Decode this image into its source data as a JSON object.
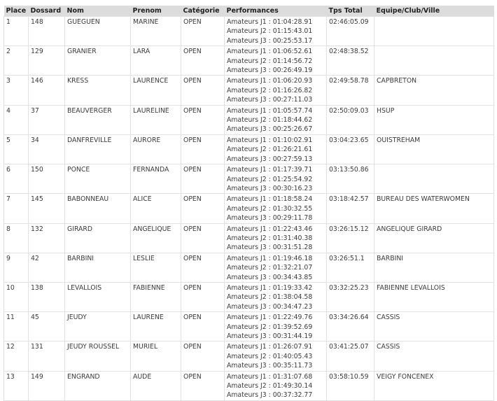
{
  "columns": [
    "Place",
    "Dossard",
    "Nom",
    "Prenom",
    "Catégorie",
    "Performances",
    "Tps Total",
    "Equipe/Club/Ville"
  ],
  "rows": [
    {
      "place": "1",
      "dossard": "148",
      "nom": "GUEGUEN",
      "prenom": "MARINE",
      "categorie": "OPEN",
      "perfs": [
        "Amateurs J1 : 01:04:28.91",
        "Amateurs J2 : 01:15:43.01",
        "Amateurs J3 : 00:25:53.17"
      ],
      "total": "02:46:05.09",
      "equipe": ""
    },
    {
      "place": "2",
      "dossard": "129",
      "nom": "GRANIER",
      "prenom": "LARA",
      "categorie": "OPEN",
      "perfs": [
        "Amateurs J1 : 01:06:52.61",
        "Amateurs J2 : 01:14:56.72",
        "Amateurs J3 : 00:26:49.19"
      ],
      "total": "02:48:38.52",
      "equipe": ""
    },
    {
      "place": "3",
      "dossard": "146",
      "nom": "KRESS",
      "prenom": "LAURENCE",
      "categorie": "OPEN",
      "perfs": [
        "Amateurs J1 : 01:06:20.93",
        "Amateurs J2 : 01:16:26.82",
        "Amateurs J3 : 00:27:11.03"
      ],
      "total": "02:49:58.78",
      "equipe": "CAPBRETON"
    },
    {
      "place": "4",
      "dossard": "37",
      "nom": "BEAUVERGER",
      "prenom": "LAURELINE",
      "categorie": "OPEN",
      "perfs": [
        "Amateurs J1 : 01:05:57.74",
        "Amateurs J2 : 01:18:44.62",
        "Amateurs J3 : 00:25:26.67"
      ],
      "total": "02:50:09.03",
      "equipe": "HSUP"
    },
    {
      "place": "5",
      "dossard": "34",
      "nom": "DANFREVILLE",
      "prenom": "AURORE",
      "categorie": "OPEN",
      "perfs": [
        "Amateurs J1 : 01:10:02.91",
        "Amateurs J2 : 01:26:21.61",
        "Amateurs J3 : 00:27:59.13"
      ],
      "total": "03:04:23.65",
      "equipe": "OUISTREHAM"
    },
    {
      "place": "6",
      "dossard": "150",
      "nom": "PONCE",
      "prenom": "FERNANDA",
      "categorie": "OPEN",
      "perfs": [
        "Amateurs J1 : 01:17:39.71",
        "Amateurs J2 : 01:25:54.92",
        "Amateurs J3 : 00:30:16.23"
      ],
      "total": "03:13:50.86",
      "equipe": ""
    },
    {
      "place": "7",
      "dossard": "145",
      "nom": "BABONNEAU",
      "prenom": "ALICE",
      "categorie": "OPEN",
      "perfs": [
        "Amateurs J1 : 01:18:58.24",
        "Amateurs J2 : 01:30:32.55",
        "Amateurs J3 : 00:29:11.78"
      ],
      "total": "03:18:42.57",
      "equipe": "BUREAU DES WATERWOMEN"
    },
    {
      "place": "8",
      "dossard": "132",
      "nom": "GIRARD",
      "prenom": "ANGELIQUE",
      "categorie": "OPEN",
      "perfs": [
        "Amateurs J1 : 01:22:43.46",
        "Amateurs J2 : 01:31:40.38",
        "Amateurs J3 : 00:31:51.28"
      ],
      "total": "03:26:15.12",
      "equipe": "ANGELIQUE GIRARD"
    },
    {
      "place": "9",
      "dossard": "42",
      "nom": "BARBINI",
      "prenom": "LESLIE",
      "categorie": "OPEN",
      "perfs": [
        "Amateurs J1 : 01:19:46.18",
        "Amateurs J2 : 01:32:21.07",
        "Amateurs J3 : 00:34:43.85"
      ],
      "total": "03:26:51.1",
      "equipe": "BARBINI"
    },
    {
      "place": "10",
      "dossard": "138",
      "nom": "LEVALLOIS",
      "prenom": "FABIENNE",
      "categorie": "OPEN",
      "perfs": [
        "Amateurs J1 : 01:19:33.42",
        "Amateurs J2 : 01:38:04.58",
        "Amateurs J3 : 00:34:47.23"
      ],
      "total": "03:32:25.23",
      "equipe": "FABIENNE LEVALLOIS"
    },
    {
      "place": "11",
      "dossard": "45",
      "nom": "JEUDY",
      "prenom": "LAURENE",
      "categorie": "OPEN",
      "perfs": [
        "Amateurs J1 : 01:22:49.76",
        "Amateurs J2 : 01:39:52.69",
        "Amateurs J3 : 00:31:44.19"
      ],
      "total": "03:34:26.64",
      "equipe": "CASSIS"
    },
    {
      "place": "12",
      "dossard": "131",
      "nom": "JEUDY ROUSSEL",
      "prenom": "MURIEL",
      "categorie": "OPEN",
      "perfs": [
        "Amateurs J1 : 01:26:07.91",
        "Amateurs J2 : 01:40:05.43",
        "Amateurs J3 : 00:35:11.73"
      ],
      "total": "03:41:25.07",
      "equipe": "CASSIS"
    },
    {
      "place": "13",
      "dossard": "149",
      "nom": "ENGRAND",
      "prenom": "AUDE",
      "categorie": "OPEN",
      "perfs": [
        "Amateurs J1 : 01:31:07.68",
        "Amateurs J2 : 01:49:30.14",
        "Amateurs J3 : 00:37:32.77"
      ],
      "total": "03:58:10.59",
      "equipe": "VEIGY FONCENEX"
    }
  ]
}
